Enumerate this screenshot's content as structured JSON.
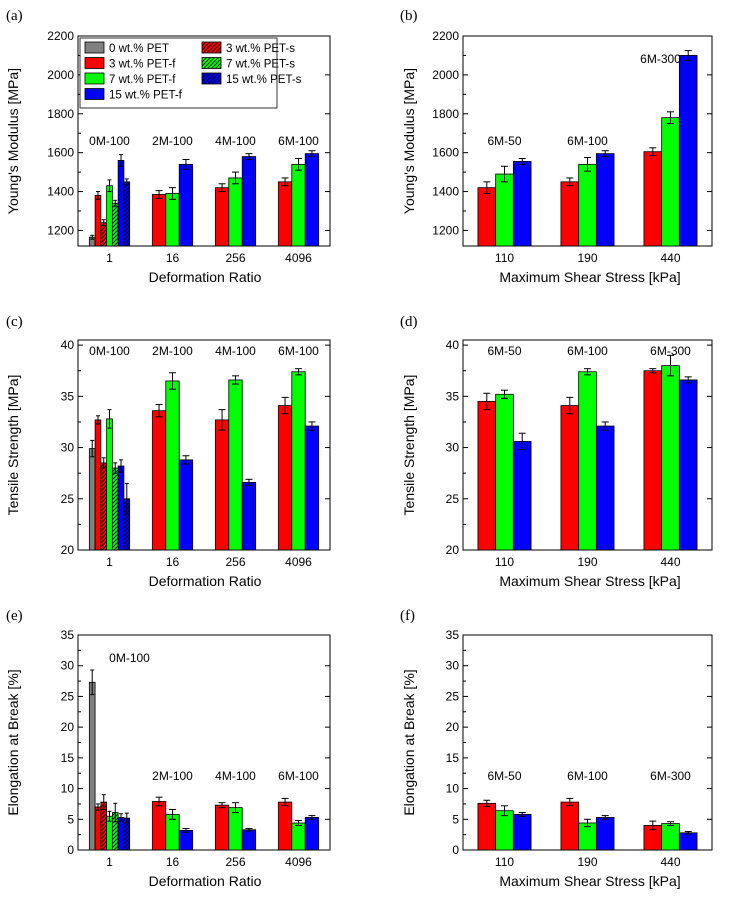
{
  "chart_data": [
    {
      "id": "a",
      "type": "bar",
      "panel_label": "(a)",
      "xlabel": "Deformation Ratio",
      "ylabel": "Young's Modulus [MPa]",
      "ylim": [
        1120,
        2200
      ],
      "yticks": [
        1200,
        1400,
        1600,
        1800,
        2000,
        2200
      ],
      "categories": [
        "1",
        "16",
        "256",
        "4096"
      ],
      "group_labels": [
        "0M-100",
        "2M-100",
        "4M-100",
        "6M-100"
      ],
      "series": [
        {
          "name": "0 wt.% PET",
          "color": "#808080",
          "hatch": false,
          "values": [
            1165,
            null,
            null,
            null
          ],
          "errors": [
            10,
            null,
            null,
            null
          ]
        },
        {
          "name": "3 wt.% PET-f",
          "color": "#ff0000",
          "hatch": false,
          "values": [
            1380,
            1385,
            1420,
            1450
          ],
          "errors": [
            20,
            20,
            20,
            20
          ]
        },
        {
          "name": "3 wt.% PET-s",
          "color": "#ff0000",
          "hatch": true,
          "values": [
            1240,
            null,
            null,
            null
          ],
          "errors": [
            15,
            null,
            null,
            null
          ]
        },
        {
          "name": "7 wt.% PET-f",
          "color": "#00ff00",
          "hatch": false,
          "values": [
            1430,
            1390,
            1470,
            1540
          ],
          "errors": [
            30,
            30,
            30,
            30
          ]
        },
        {
          "name": "7 wt.% PET-s",
          "color": "#00ff00",
          "hatch": true,
          "values": [
            1340,
            null,
            null,
            null
          ],
          "errors": [
            15,
            null,
            null,
            null
          ]
        },
        {
          "name": "15 wt.% PET-f",
          "color": "#0000ff",
          "hatch": false,
          "values": [
            1560,
            1540,
            1580,
            1595
          ],
          "errors": [
            30,
            25,
            15,
            15
          ]
        },
        {
          "name": "15 wt.% PET-s",
          "color": "#0000ff",
          "hatch": true,
          "values": [
            1450,
            null,
            null,
            null
          ],
          "errors": [
            15,
            null,
            null,
            null
          ]
        }
      ],
      "legend": {
        "placement": "top-left",
        "entries": [
          "0 wt.% PET",
          "3 wt.% PET-s",
          "3 wt.% PET-f",
          "7 wt.% PET-s",
          "7 wt.% PET-f",
          "15 wt.% PET-s",
          "15 wt.% PET-f"
        ]
      }
    },
    {
      "id": "b",
      "type": "bar",
      "panel_label": "(b)",
      "xlabel": "Maximum Shear Stress [kPa]",
      "ylabel": "Young's Modulus [MPa]",
      "ylim": [
        1120,
        2200
      ],
      "yticks": [
        1200,
        1400,
        1600,
        1800,
        2000,
        2200
      ],
      "categories": [
        "110",
        "190",
        "440"
      ],
      "group_labels": [
        "6M-50",
        "6M-100",
        "6M-300"
      ],
      "series": [
        {
          "name": "3 wt.% PET-f",
          "color": "#ff0000",
          "hatch": false,
          "values": [
            1420,
            1450,
            1605
          ],
          "errors": [
            30,
            20,
            20
          ]
        },
        {
          "name": "7 wt.% PET-f",
          "color": "#00ff00",
          "hatch": false,
          "values": [
            1490,
            1540,
            1780
          ],
          "errors": [
            40,
            35,
            30
          ]
        },
        {
          "name": "15 wt.% PET-f",
          "color": "#0000ff",
          "hatch": false,
          "values": [
            1555,
            1595,
            2100
          ],
          "errors": [
            15,
            15,
            25
          ]
        }
      ]
    },
    {
      "id": "c",
      "type": "bar",
      "panel_label": "(c)",
      "xlabel": "Deformation Ratio",
      "ylabel": "Tensile Strength [MPa]",
      "ylim": [
        20,
        40.5
      ],
      "yticks": [
        20,
        25,
        30,
        35,
        40
      ],
      "categories": [
        "1",
        "16",
        "256",
        "4096"
      ],
      "group_labels": [
        "0M-100",
        "2M-100",
        "4M-100",
        "6M-100"
      ],
      "series": [
        {
          "name": "0 wt.% PET",
          "color": "#808080",
          "hatch": false,
          "values": [
            29.9,
            null,
            null,
            null
          ],
          "errors": [
            0.8,
            null,
            null,
            null
          ]
        },
        {
          "name": "3 wt.% PET-f",
          "color": "#ff0000",
          "hatch": false,
          "values": [
            32.7,
            33.6,
            32.7,
            34.1
          ],
          "errors": [
            0.4,
            0.6,
            1.0,
            0.8
          ]
        },
        {
          "name": "3 wt.% PET-s",
          "color": "#ff0000",
          "hatch": true,
          "values": [
            28.5,
            null,
            null,
            null
          ],
          "errors": [
            0.5,
            null,
            null,
            null
          ]
        },
        {
          "name": "7 wt.% PET-f",
          "color": "#00ff00",
          "hatch": false,
          "values": [
            32.8,
            36.5,
            36.6,
            37.4
          ],
          "errors": [
            0.9,
            0.8,
            0.4,
            0.3
          ]
        },
        {
          "name": "7 wt.% PET-s",
          "color": "#00ff00",
          "hatch": true,
          "values": [
            28.0,
            null,
            null,
            null
          ],
          "errors": [
            0.5,
            null,
            null,
            null
          ]
        },
        {
          "name": "15 wt.% PET-f",
          "color": "#0000ff",
          "hatch": false,
          "values": [
            28.2,
            28.8,
            26.6,
            32.1
          ],
          "errors": [
            0.6,
            0.4,
            0.3,
            0.4
          ]
        },
        {
          "name": "15 wt.% PET-s",
          "color": "#0000ff",
          "hatch": true,
          "values": [
            25.0,
            null,
            null,
            null
          ],
          "errors": [
            1.5,
            null,
            null,
            null
          ]
        }
      ]
    },
    {
      "id": "d",
      "type": "bar",
      "panel_label": "(d)",
      "xlabel": "Maximum Shear Stress [kPa]",
      "ylabel": "Tensile Strength [MPa]",
      "ylim": [
        20,
        40.5
      ],
      "yticks": [
        20,
        25,
        30,
        35,
        40
      ],
      "categories": [
        "110",
        "190",
        "440"
      ],
      "group_labels": [
        "6M-50",
        "6M-100",
        "6M-300"
      ],
      "series": [
        {
          "name": "3 wt.% PET-f",
          "color": "#ff0000",
          "hatch": false,
          "values": [
            34.5,
            34.1,
            37.5
          ],
          "errors": [
            0.8,
            0.8,
            0.2
          ]
        },
        {
          "name": "7 wt.% PET-f",
          "color": "#00ff00",
          "hatch": false,
          "values": [
            35.2,
            37.4,
            38.0
          ],
          "errors": [
            0.4,
            0.3,
            1.0
          ]
        },
        {
          "name": "15 wt.% PET-f",
          "color": "#0000ff",
          "hatch": false,
          "values": [
            30.6,
            32.1,
            36.6
          ],
          "errors": [
            0.8,
            0.4,
            0.3
          ]
        }
      ]
    },
    {
      "id": "e",
      "type": "bar",
      "panel_label": "(e)",
      "xlabel": "Deformation Ratio",
      "ylabel": "Elongation at Break [%]",
      "ylim": [
        0,
        35
      ],
      "yticks": [
        0,
        5,
        10,
        15,
        20,
        25,
        30,
        35
      ],
      "categories": [
        "1",
        "16",
        "256",
        "4096"
      ],
      "group_labels": [
        "0M-100",
        "2M-100",
        "4M-100",
        "6M-100"
      ],
      "series": [
        {
          "name": "0 wt.% PET",
          "color": "#808080",
          "hatch": false,
          "values": [
            27.3,
            null,
            null,
            null
          ],
          "errors": [
            2.0,
            null,
            null,
            null
          ]
        },
        {
          "name": "3 wt.% PET-f",
          "color": "#ff0000",
          "hatch": false,
          "values": [
            7.0,
            7.9,
            7.3,
            7.8
          ],
          "errors": [
            0.5,
            0.7,
            0.4,
            0.6
          ]
        },
        {
          "name": "3 wt.% PET-s",
          "color": "#ff0000",
          "hatch": true,
          "values": [
            7.8,
            null,
            null,
            null
          ],
          "errors": [
            1.2,
            null,
            null,
            null
          ]
        },
        {
          "name": "7 wt.% PET-f",
          "color": "#00ff00",
          "hatch": false,
          "values": [
            5.5,
            5.8,
            6.9,
            4.4
          ],
          "errors": [
            0.8,
            0.8,
            0.8,
            0.4
          ]
        },
        {
          "name": "7 wt.% PET-s",
          "color": "#00ff00",
          "hatch": true,
          "values": [
            6.1,
            null,
            null,
            null
          ],
          "errors": [
            1.5,
            null,
            null,
            null
          ]
        },
        {
          "name": "15 wt.% PET-f",
          "color": "#0000ff",
          "hatch": false,
          "values": [
            5.3,
            3.2,
            3.3,
            5.3
          ],
          "errors": [
            0.6,
            0.3,
            0.2,
            0.3
          ]
        },
        {
          "name": "15 wt.% PET-s",
          "color": "#0000ff",
          "hatch": true,
          "values": [
            5.2,
            null,
            null,
            null
          ],
          "errors": [
            0.8,
            null,
            null,
            null
          ]
        }
      ]
    },
    {
      "id": "f",
      "type": "bar",
      "panel_label": "(f)",
      "xlabel": "Maximum Shear Stress [kPa]",
      "ylabel": "Elongation at Break [%]",
      "ylim": [
        0,
        35
      ],
      "yticks": [
        0,
        5,
        10,
        15,
        20,
        25,
        30,
        35
      ],
      "categories": [
        "110",
        "190",
        "440"
      ],
      "group_labels": [
        "6M-50",
        "6M-100",
        "6M-300"
      ],
      "series": [
        {
          "name": "3 wt.% PET-f",
          "color": "#ff0000",
          "hatch": false,
          "values": [
            7.6,
            7.8,
            4.0
          ],
          "errors": [
            0.5,
            0.6,
            0.7
          ]
        },
        {
          "name": "7 wt.% PET-f",
          "color": "#00ff00",
          "hatch": false,
          "values": [
            6.4,
            4.4,
            4.3
          ],
          "errors": [
            0.8,
            0.6,
            0.3
          ]
        },
        {
          "name": "15 wt.% PET-f",
          "color": "#0000ff",
          "hatch": false,
          "values": [
            5.8,
            5.3,
            2.8
          ],
          "errors": [
            0.3,
            0.3,
            0.2
          ]
        }
      ]
    }
  ]
}
